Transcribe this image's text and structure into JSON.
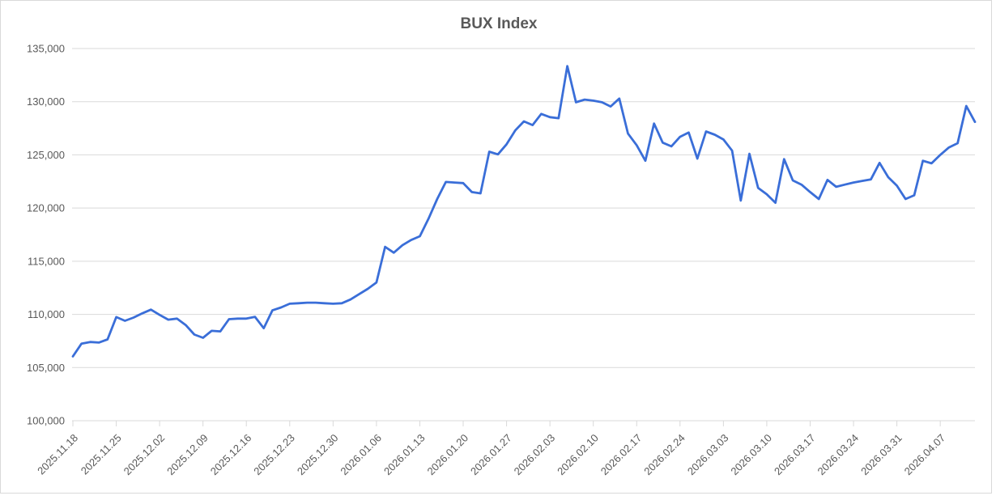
{
  "window": {
    "background": "#ffffff",
    "border_color": "#d9d9d9"
  },
  "chart_data": {
    "type": "line",
    "title": "BUX Index",
    "legend": "none",
    "grid": "horizontal",
    "ylim": [
      100000,
      135000
    ],
    "ytick_step": 5000,
    "y_tick_labels_top_to_bottom": [
      "135,000",
      "130,000",
      "125,000",
      "120,000",
      "115,000",
      "110,000",
      "105,000",
      "100,000"
    ],
    "x_tick_labels": [
      "2025.11.18",
      "2025.11.25",
      "2025.12.02",
      "2025.12.09",
      "2025.12.16",
      "2025.12.23",
      "2025.12.30",
      "2026.01.06",
      "2026.01.13",
      "2026.01.20",
      "2026.01.27",
      "2026.02.03",
      "2026.02.10",
      "2026.02.17",
      "2026.02.24",
      "2026.03.03",
      "2026.03.10",
      "2026.03.17",
      "2026.03.24",
      "2026.03.31",
      "2026.04.07"
    ],
    "points_per_x_tick": 5,
    "x_note": "daily (weekday) values, one x tick per week; series extends 4 points past last tick",
    "text_color": "#595959",
    "gridline_color": "#d9d9d9",
    "series": [
      {
        "name": "BUX Index",
        "color": "#3a6ed8",
        "values": [
          106050,
          107250,
          107400,
          107350,
          107650,
          109750,
          109400,
          109700,
          110100,
          110450,
          109950,
          109500,
          109600,
          109000,
          108100,
          107800,
          108450,
          108400,
          109550,
          109600,
          109600,
          109770,
          108700,
          110380,
          110650,
          111000,
          111050,
          111100,
          111100,
          111050,
          111000,
          111050,
          111400,
          111900,
          112400,
          113000,
          116350,
          115800,
          116500,
          117000,
          117350,
          119000,
          120850,
          122450,
          122400,
          122350,
          121500,
          121380,
          125300,
          125050,
          126000,
          127300,
          128150,
          127800,
          128850,
          128550,
          128450,
          133350,
          129950,
          130200,
          130100,
          129950,
          129550,
          130300,
          127000,
          125900,
          124450,
          127950,
          126150,
          125800,
          126700,
          127100,
          124650,
          127200,
          126900,
          126450,
          125400,
          120700,
          125100,
          121900,
          121300,
          120500,
          124600,
          122600,
          122200,
          121500,
          120850,
          122650,
          122000,
          122200,
          122400,
          122550,
          122700,
          124250,
          122900,
          122100,
          120850,
          121200,
          124450,
          124200,
          125000,
          125700,
          126100,
          129600,
          128100
        ]
      }
    ]
  }
}
